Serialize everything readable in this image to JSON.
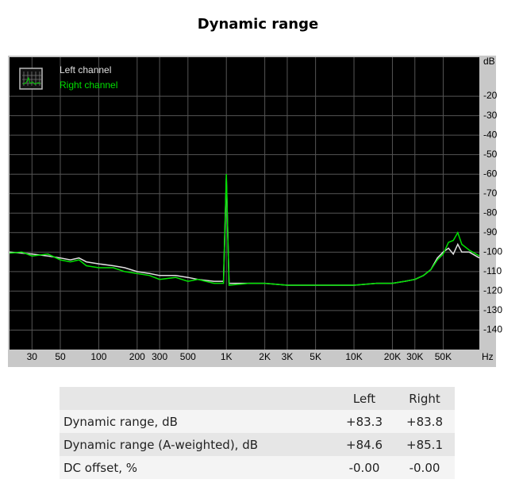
{
  "title": "Dynamic range",
  "chart_data": {
    "type": "line",
    "x_label": "Hz",
    "y_label": "dB",
    "log_x": true,
    "grid": true,
    "legend": "upper left",
    "x": [
      20,
      25,
      30,
      40,
      50,
      60,
      70,
      80,
      100,
      130,
      160,
      200,
      250,
      300,
      400,
      500,
      600,
      800,
      950,
      1000,
      1050,
      1500,
      2000,
      3000,
      4000,
      5000,
      7000,
      10000,
      15000,
      20000,
      25000,
      30000,
      35000,
      40000,
      45000,
      50000,
      55000,
      60000,
      65000,
      70000,
      80000,
      96000
    ],
    "series": [
      {
        "name": "Left channel",
        "color": "#e0e0e0",
        "values": [
          -100,
          -100.5,
          -101,
          -102,
          -103,
          -104,
          -103,
          -105,
          -106,
          -107,
          -108,
          -110,
          -111,
          -112,
          -112,
          -113,
          -114,
          -115,
          -115,
          -62,
          -116,
          -116,
          -116,
          -117,
          -117,
          -117,
          -117,
          -117,
          -116,
          -116,
          -115,
          -114,
          -112,
          -109,
          -103,
          -100,
          -98,
          -101,
          -96,
          -100,
          -100,
          -103
        ]
      },
      {
        "name": "Right channel",
        "color": "#00e000",
        "values": [
          -100.5,
          -100,
          -102,
          -101,
          -104,
          -105,
          -104,
          -107,
          -108,
          -108,
          -110,
          -111,
          -112,
          -114,
          -113,
          -115,
          -114,
          -116,
          -116,
          -60,
          -117,
          -116,
          -116,
          -117,
          -117,
          -117,
          -117,
          -117,
          -116,
          -116,
          -115,
          -114,
          -112,
          -109,
          -104,
          -101,
          -95,
          -94,
          -90,
          -96,
          -99,
          -102
        ]
      }
    ],
    "xlim": [
      20,
      96000
    ],
    "xticks": [
      30,
      50,
      100,
      200,
      300,
      500,
      {
        "value": 1000,
        "label": "1K"
      },
      {
        "value": 2000,
        "label": "2K"
      },
      {
        "value": 3000,
        "label": "3K"
      },
      {
        "value": 5000,
        "label": "5K"
      },
      {
        "value": 10000,
        "label": "10K"
      },
      {
        "value": 20000,
        "label": "20K"
      },
      {
        "value": 30000,
        "label": "30K"
      },
      {
        "value": 50000,
        "label": "50K"
      }
    ],
    "ylim": [
      -150,
      0
    ],
    "yticks": [
      -20,
      -30,
      -40,
      -50,
      -60,
      -70,
      -80,
      -90,
      -100,
      -110,
      -120,
      -130,
      -140
    ]
  },
  "table": {
    "header": [
      "Left",
      "Right"
    ],
    "rows": [
      [
        "Dynamic range, dB",
        "+83.3",
        "+83.8"
      ],
      [
        "Dynamic range (A-weighted), dB",
        "+84.6",
        "+85.1"
      ],
      [
        "DC offset, %",
        "-0.00",
        "-0.00"
      ]
    ]
  }
}
